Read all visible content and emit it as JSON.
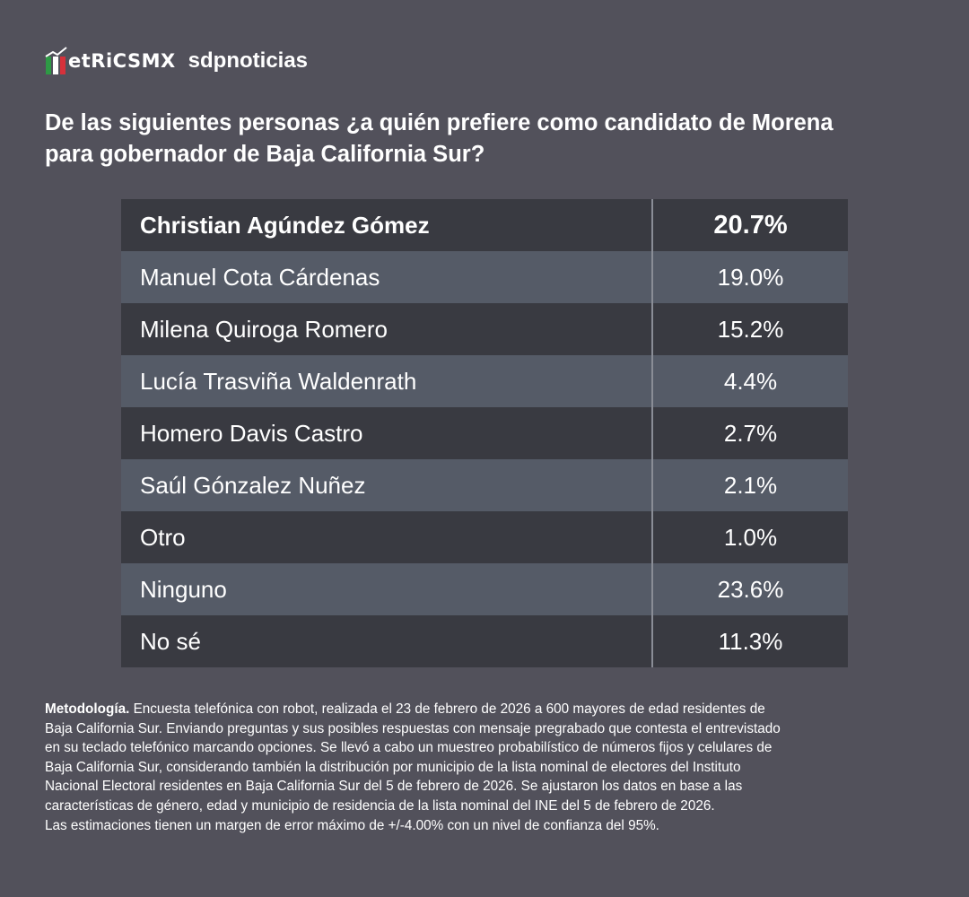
{
  "header": {
    "logo": "etRiCSMX",
    "brand": "sdpnoticias"
  },
  "title": {
    "lines": [
      "De las siguientes personas ¿a quién prefiere como candidato de Morena",
      "para gobernador de Baja California Sur?"
    ]
  },
  "table": {
    "rows": [
      [
        "Christian Agúndez Gómez",
        "20.7%"
      ],
      [
        "Manuel Cota Cárdenas",
        "19.0%"
      ],
      [
        "Milena Quiroga Romero",
        "15.2%"
      ],
      [
        "Lucía Trasviña Waldenrath",
        "4.4%"
      ],
      [
        "Homero Davis Castro",
        "2.7%"
      ],
      [
        "Saúl Gónzalez Nuñez",
        "2.1%"
      ],
      [
        "Otro",
        "1.0%"
      ],
      [
        "Ninguno",
        "23.6%"
      ],
      [
        "No sé",
        "11.3%"
      ]
    ]
  },
  "methodology": {
    "label": "Metodología.",
    "lines": [
      " Encuesta telefónica con robot, realizada el 23 de febrero de 2026 a 600 mayores de edad residentes de",
      "Baja California Sur. Enviando preguntas y sus posibles respuestas con mensaje pregrabado que contesta el entrevistado",
      "en su teclado telefónico marcando opciones. Se llevó a cabo un muestreo probabilístico de números fijos y celulares de",
      "Baja California Sur, considerando también la distribución por municipio de la lista nominal de electores del Instituto",
      "Nacional Electoral residentes en Baja California Sur del 5 de febrero de 2026. Se ajustaron los datos en base a las",
      "características de género, edad y municipio de residencia de la lista nominal del INE del 5 de febrero de 2026.",
      "Las estimaciones tienen un margen de error máximo de +/-4.00% con un nivel de confianza del 95%."
    ]
  }
}
